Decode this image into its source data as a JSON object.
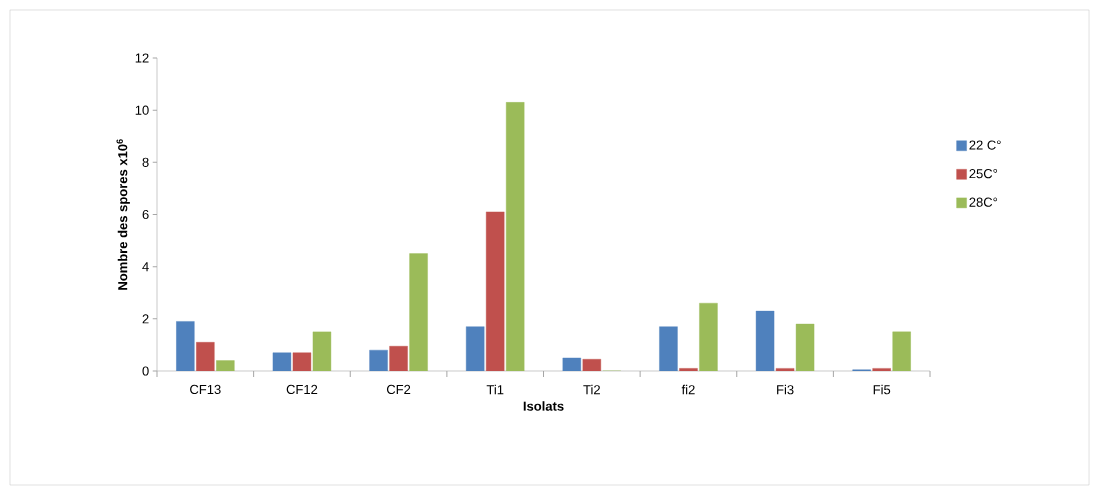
{
  "chart_data": {
    "type": "bar",
    "xlabel": "Isolats",
    "ylabel": "Nombre des spores x10$^{6}$",
    "categories": [
      "CF13",
      "CF12",
      "CF2",
      "Ti1",
      "Ti2",
      "fi2",
      "Fi3",
      "Fi5"
    ],
    "series": [
      {
        "name": "22 C°",
        "color": "#4f81bd",
        "values": [
          1.9,
          0.7,
          0.8,
          1.7,
          0.5,
          1.7,
          2.3,
          0.05
        ]
      },
      {
        "name": "25C°",
        "color": "#c0504d",
        "values": [
          1.1,
          0.7,
          0.95,
          6.1,
          0.45,
          0.1,
          0.1,
          0.1
        ]
      },
      {
        "name": "28C°",
        "color": "#9bbb59",
        "values": [
          0.4,
          1.5,
          4.5,
          10.3,
          0,
          2.6,
          1.8,
          1.5
        ]
      }
    ],
    "ylim": [
      0,
      12
    ],
    "yticks": [
      0,
      2,
      4,
      6,
      8,
      10,
      12
    ],
    "grid": false,
    "legend": "right"
  }
}
